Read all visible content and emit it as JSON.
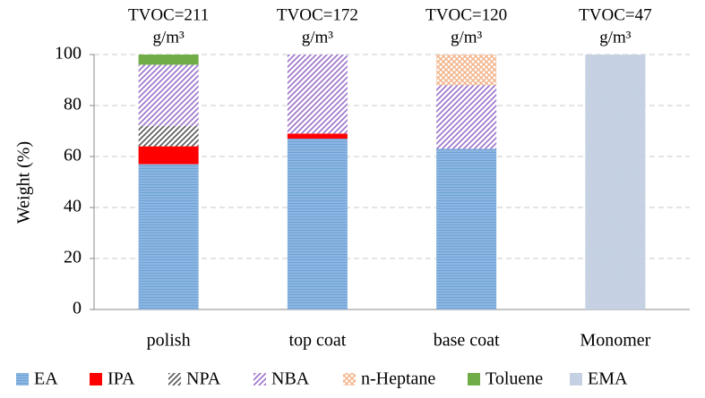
{
  "chart_data": {
    "type": "stacked_bar",
    "y_label": "Weight (%)",
    "categories": [
      "polish",
      "top coat",
      "base coat",
      "Monomer"
    ],
    "annotations": [
      {
        "line1": "TVOC=211",
        "line2": "g/m³"
      },
      {
        "line1": "TVOC=172",
        "line2": "g/m³"
      },
      {
        "line1": "TVOC=120",
        "line2": "g/m³"
      },
      {
        "line1": "TVOC=47",
        "line2": "g/m³"
      }
    ],
    "series": [
      {
        "name": "EA",
        "color": "#6fa3d8",
        "pattern": "horizontal",
        "values": [
          57,
          67,
          63,
          0
        ]
      },
      {
        "name": "IPA",
        "color": "#ff0000",
        "pattern": "solid",
        "values": [
          7,
          2,
          0,
          0
        ]
      },
      {
        "name": "NPA",
        "color": "#555555",
        "pattern": "diagonal",
        "values": [
          8,
          0,
          0,
          0
        ]
      },
      {
        "name": "NBA",
        "color": "#9b6fc9",
        "pattern": "diagonal",
        "values": [
          24,
          31,
          25,
          0
        ]
      },
      {
        "name": "n-Heptane",
        "color": "#f2b48a",
        "pattern": "crosshatch",
        "values": [
          0,
          0,
          12,
          0
        ]
      },
      {
        "name": "Toluene",
        "color": "#70ad47",
        "pattern": "solid",
        "values": [
          4,
          0,
          0,
          0
        ]
      },
      {
        "name": "EMA",
        "color": "#b8c6dc",
        "pattern": "fine",
        "values": [
          0,
          0,
          0,
          100
        ]
      }
    ],
    "ylim": [
      0,
      100
    ],
    "yticks": [
      0,
      20,
      40,
      60,
      80,
      100
    ],
    "grid": true,
    "legend": "bottom"
  }
}
